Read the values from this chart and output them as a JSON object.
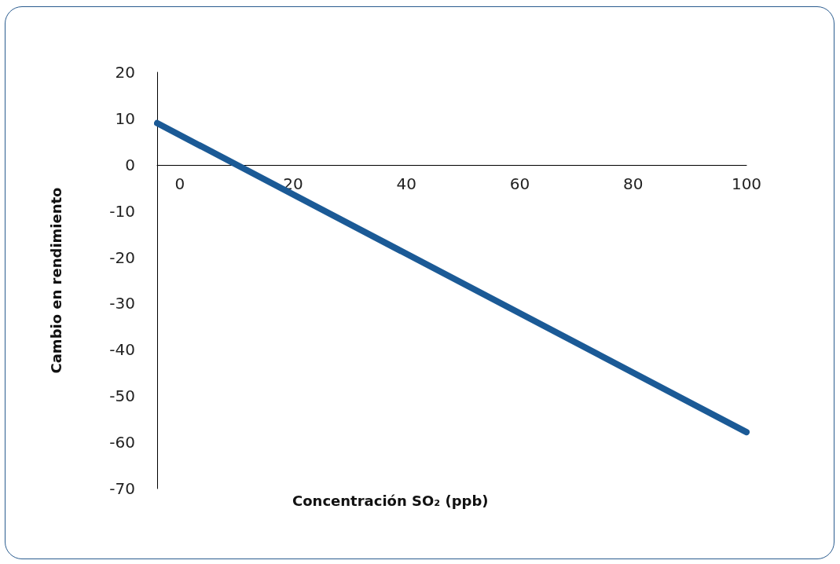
{
  "chart_data": {
    "type": "line",
    "xlabel": "Concentración SO₂ (ppb)",
    "ylabel": "Cambio en rendimiento",
    "x": [
      -4,
      100
    ],
    "series": [
      {
        "color": "#1b5a96",
        "values": [
          9,
          -57.8
        ]
      }
    ],
    "xlim": [
      -4,
      100
    ],
    "xticks": [
      0,
      20,
      40,
      60,
      80,
      100
    ],
    "ylim": [
      -70,
      20
    ],
    "yticks": [
      -70,
      -60,
      -50,
      -40,
      -30,
      -20,
      -10,
      0,
      10,
      20
    ],
    "line_style": "solid"
  }
}
